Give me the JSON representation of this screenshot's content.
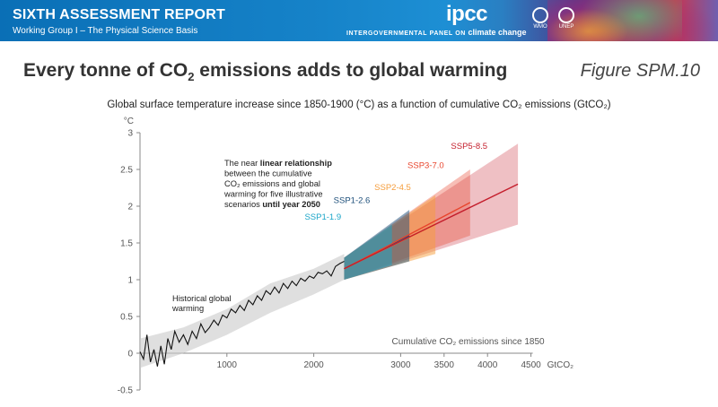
{
  "header": {
    "report_title": "SIXTH ASSESSMENT REPORT",
    "report_subtitle": "Working Group I – The Physical Science Basis",
    "org_logo": "ipcc",
    "org_tagline_prefix": "INTERGOVERNMENTAL PANEL ON",
    "org_tagline_suffix": "climate change",
    "partner_logos": [
      "WMO",
      "UNEP"
    ]
  },
  "slide": {
    "title_prefix": "Every tonne of CO",
    "title_sub": "2",
    "title_suffix": " emissions adds to global warming",
    "figure_label": "Figure SPM.10"
  },
  "chart_data": {
    "type": "line",
    "title": "Global surface temperature increase since 1850-1900 (°C) as a function of cumulative CO₂ emissions (GtCO₂)",
    "ylabel": "°C",
    "xlabel": "Cumulative CO₂ emissions since 1850",
    "x_unit": "GtCO₂",
    "xlim": [
      0,
      4500
    ],
    "ylim": [
      -0.5,
      3
    ],
    "x_ticks": [
      1000,
      2000,
      3000,
      3500,
      4000,
      4500
    ],
    "y_ticks": [
      -0.5,
      0,
      0.5,
      1,
      1.5,
      2,
      2.5,
      3
    ],
    "annotation_text": [
      {
        "text": "The near ",
        "bold": false
      },
      {
        "text": "linear relationship",
        "bold": true
      },
      {
        "text": " between the cumulative CO₂ emissions and global warming for five illustrative scenarios ",
        "bold": false
      },
      {
        "text": "until year 2050",
        "bold": true
      }
    ],
    "historical_label": "Historical global warming",
    "historical": {
      "x": [
        0,
        40,
        80,
        120,
        160,
        200,
        240,
        280,
        320,
        360,
        400,
        450,
        500,
        550,
        600,
        650,
        700,
        750,
        800,
        850,
        900,
        950,
        1000,
        1050,
        1100,
        1150,
        1200,
        1250,
        1300,
        1350,
        1400,
        1450,
        1500,
        1550,
        1600,
        1650,
        1700,
        1750,
        1800,
        1850,
        1900,
        1950,
        2000,
        2050,
        2100,
        2150,
        2200,
        2250,
        2300,
        2350
      ],
      "y": [
        0.02,
        -0.08,
        0.25,
        -0.12,
        0.05,
        -0.18,
        0.1,
        -0.15,
        0.2,
        0.05,
        0.3,
        0.15,
        0.25,
        0.12,
        0.3,
        0.2,
        0.4,
        0.28,
        0.35,
        0.45,
        0.38,
        0.52,
        0.48,
        0.6,
        0.55,
        0.65,
        0.58,
        0.72,
        0.66,
        0.78,
        0.72,
        0.85,
        0.8,
        0.9,
        0.82,
        0.95,
        0.88,
        0.98,
        0.92,
        1.02,
        0.98,
        1.05,
        1.02,
        1.1,
        1.08,
        1.12,
        1.05,
        1.18,
        1.22,
        1.25
      ]
    },
    "historical_band": {
      "x": [
        0,
        500,
        1000,
        1500,
        2000,
        2350
      ],
      "low": [
        -0.2,
        0.0,
        0.25,
        0.55,
        0.8,
        1.0
      ],
      "high": [
        0.2,
        0.35,
        0.6,
        0.95,
        1.15,
        1.35
      ]
    },
    "series": [
      {
        "name": "SSP1-1.9",
        "color": "#1aa5c8",
        "x": [
          2350,
          2900
        ],
        "y": [
          1.15,
          1.5
        ],
        "low": [
          1.0,
          1.2
        ],
        "high": [
          1.3,
          1.75
        ]
      },
      {
        "name": "SSP1-2.6",
        "color": "#1d4f7a",
        "x": [
          2350,
          3100
        ],
        "y": [
          1.15,
          1.6
        ],
        "low": [
          1.0,
          1.25
        ],
        "high": [
          1.3,
          1.95
        ]
      },
      {
        "name": "SSP2-4.5",
        "color": "#f59d3c",
        "x": [
          2350,
          3400
        ],
        "y": [
          1.15,
          1.75
        ],
        "low": [
          1.0,
          1.35
        ],
        "high": [
          1.3,
          2.15
        ]
      },
      {
        "name": "SSP3-7.0",
        "color": "#e8452d",
        "x": [
          2350,
          3800
        ],
        "y": [
          1.15,
          2.05
        ],
        "low": [
          1.0,
          1.6
        ],
        "high": [
          1.3,
          2.5
        ]
      },
      {
        "name": "SSP5-8.5",
        "color": "#c41e2c",
        "x": [
          2350,
          4350
        ],
        "y": [
          1.15,
          2.3
        ],
        "low": [
          1.0,
          1.75
        ],
        "high": [
          1.3,
          2.85
        ]
      }
    ]
  }
}
